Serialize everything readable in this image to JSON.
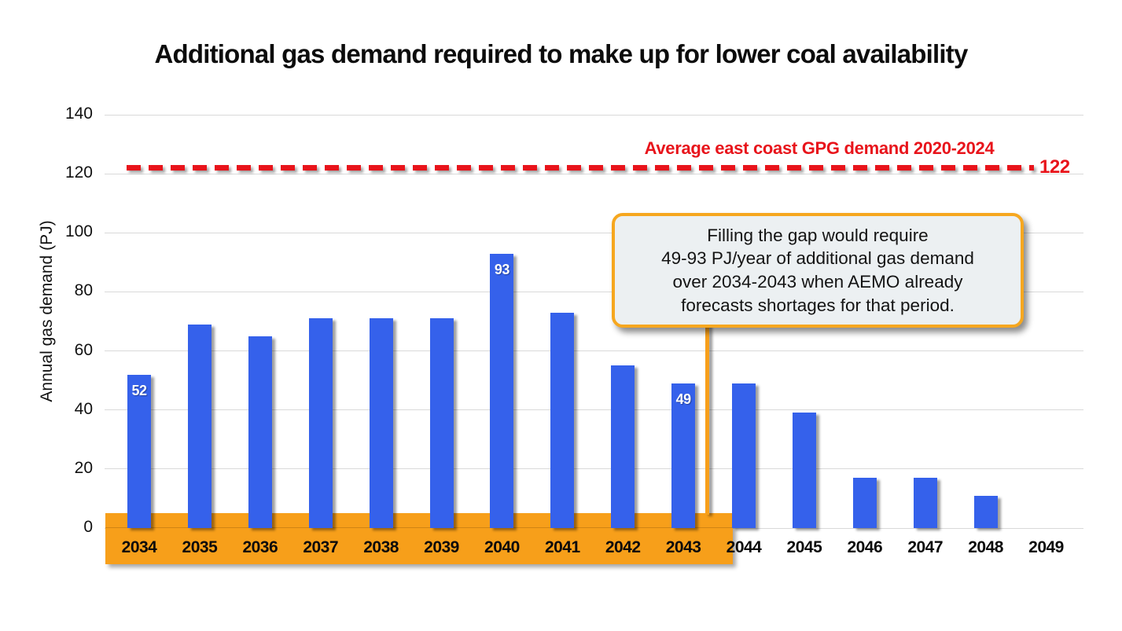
{
  "title": "Additional gas demand required to make up for lower coal availability",
  "chart_data": {
    "type": "bar",
    "title": "Additional gas demand required to make up for lower coal availability",
    "xlabel": "",
    "ylabel": "Annual gas demand (PJ)",
    "ylim": [
      0,
      140
    ],
    "yticks": [
      0,
      20,
      40,
      60,
      80,
      100,
      120,
      140
    ],
    "grid": true,
    "legend": "none",
    "categories": [
      "2034",
      "2035",
      "2036",
      "2037",
      "2038",
      "2039",
      "2040",
      "2041",
      "2042",
      "2043",
      "2044",
      "2045",
      "2046",
      "2047",
      "2048",
      "2049"
    ],
    "values": [
      52,
      69,
      65,
      71,
      71,
      71,
      93,
      73,
      55,
      49,
      49,
      39,
      17,
      17,
      11,
      0
    ],
    "bar_labels": {
      "2034": "52",
      "2040": "93",
      "2043": "49"
    },
    "reference_line": {
      "value": 122,
      "value_label": "122",
      "label": "Average east coast GPG demand 2020-2024"
    },
    "highlight_band": {
      "from": "2034",
      "to": "2043"
    },
    "annotation": {
      "lines": [
        "Filling the gap would require",
        "49-93 PJ/year of additional gas demand",
        "over 2034-2043 when AEMO already",
        "forecasts shortages for that period."
      ]
    },
    "colors": {
      "bar": "#3561eb",
      "highlight": "#f79f1a",
      "reference": "#e8141b",
      "callout_bg": "#ecf0f2",
      "callout_border": "#f6a71f",
      "gridline": "#d9d9d9",
      "text": "#0c0c0c",
      "bar_label_text": "#ffffff"
    }
  }
}
